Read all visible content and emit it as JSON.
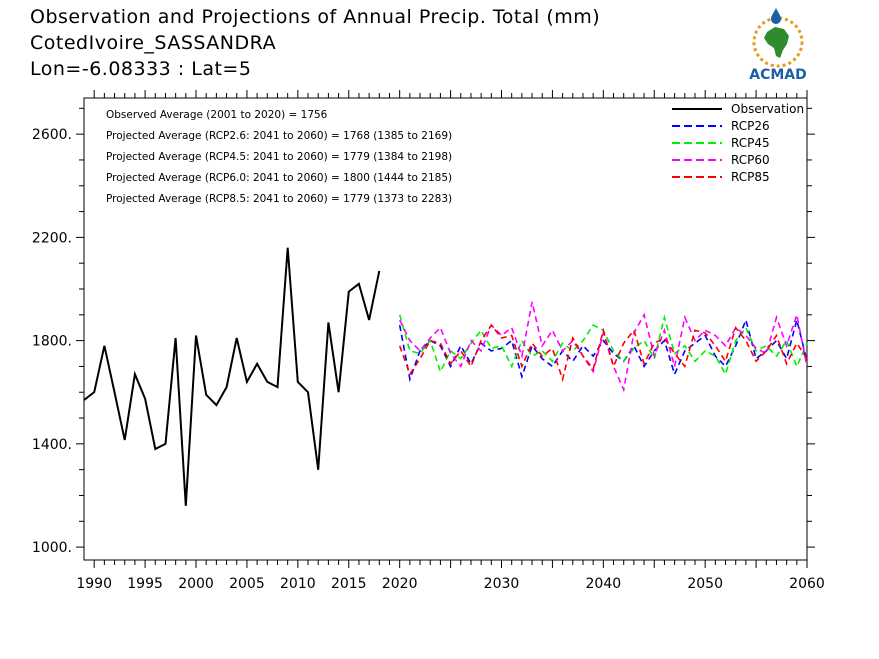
{
  "title_lines": [
    "Observation and Projections of Annual Precip. Total (mm)",
    "CotedIvoire_SASSANDRA",
    "Lon=-6.08333 : Lat=5"
  ],
  "logo_text": "ACMAD",
  "colors": {
    "Observation": "#000000",
    "RCP26": "#0000ff",
    "RCP45": "#00ee00",
    "RCP60": "#ff00ff",
    "RCP85": "#ff0000",
    "logo_blue": "#1a5fa8",
    "logo_green": "#2e8b2e",
    "logo_orange": "#e89a1e"
  },
  "chart_data": {
    "type": "line",
    "x_ticks": [
      1990,
      1995,
      2000,
      2005,
      2010,
      2015,
      2020,
      2030,
      2040,
      2050,
      2060
    ],
    "y_ticks": [
      "1000.",
      "1400.",
      "1800.",
      "2200.",
      "2600."
    ],
    "ylim": [
      950,
      2740
    ],
    "grid": false,
    "legend_position": "top-right",
    "legend": [
      "Observation",
      "RCP26",
      "RCP45",
      "RCP60",
      "RCP85"
    ],
    "annotations": [
      "Observed Average (2001 to 2020) = 1756",
      "Projected Average (RCP2.6: 2041 to 2060) = 1768 (1385 to 2169)",
      "Projected Average (RCP4.5: 2041 to 2060) = 1779 (1384 to 2198)",
      "Projected Average (RCP6.0: 2041 to 2060) = 1800 (1444 to 2185)",
      "Projected Average (RCP8.5: 2041 to 2060) = 1779 (1373 to 2283)"
    ],
    "series": [
      {
        "name": "Observation",
        "style": "solid",
        "x": [
          1989,
          1990,
          1991,
          1992,
          1993,
          1994,
          1995,
          1996,
          1997,
          1998,
          1999,
          2000,
          2001,
          2002,
          2003,
          2004,
          2005,
          2006,
          2007,
          2008,
          2009,
          2010,
          2011,
          2012,
          2013,
          2014,
          2015,
          2016,
          2017,
          2018,
          2019
        ],
        "y": [
          1570,
          1600,
          1780,
          1600,
          1415,
          1670,
          1575,
          1380,
          1400,
          1810,
          1160,
          1820,
          1590,
          1550,
          1620,
          1810,
          1640,
          1710,
          1640,
          1620,
          2160,
          1640,
          1600,
          1300,
          1870,
          1600,
          1990,
          2020,
          1880,
          2070,
          null
        ]
      },
      {
        "name": "RCP26",
        "style": "dashed",
        "x": [
          2020,
          2021,
          2022,
          2023,
          2024,
          2025,
          2026,
          2027,
          2028,
          2029,
          2030,
          2031,
          2032,
          2033,
          2034,
          2035,
          2036,
          2037,
          2038,
          2039,
          2040,
          2041,
          2042,
          2043,
          2044,
          2045,
          2046,
          2047,
          2048,
          2049,
          2050,
          2051,
          2052,
          2053,
          2054,
          2055,
          2056,
          2057,
          2058,
          2059,
          2060
        ],
        "y": [
          1860,
          1650,
          1760,
          1800,
          1780,
          1700,
          1780,
          1710,
          1790,
          1760,
          1770,
          1800,
          1660,
          1780,
          1730,
          1700,
          1760,
          1720,
          1780,
          1740,
          1800,
          1750,
          1720,
          1780,
          1700,
          1760,
          1800,
          1670,
          1760,
          1790,
          1820,
          1740,
          1700,
          1780,
          1880,
          1730,
          1760,
          1800,
          1730,
          1880,
          1720
        ]
      },
      {
        "name": "RCP45",
        "style": "dashed",
        "x": [
          2020,
          2021,
          2022,
          2023,
          2024,
          2025,
          2026,
          2027,
          2028,
          2029,
          2030,
          2031,
          2032,
          2033,
          2034,
          2035,
          2036,
          2037,
          2038,
          2039,
          2040,
          2041,
          2042,
          2043,
          2044,
          2045,
          2046,
          2047,
          2048,
          2049,
          2050,
          2051,
          2052,
          2053,
          2054,
          2055,
          2056,
          2057,
          2058,
          2059,
          2060
        ],
        "y": [
          1900,
          1760,
          1750,
          1800,
          1680,
          1760,
          1730,
          1790,
          1840,
          1770,
          1780,
          1700,
          1800,
          1740,
          1760,
          1720,
          1790,
          1760,
          1800,
          1860,
          1840,
          1760,
          1720,
          1770,
          1800,
          1730,
          1890,
          1750,
          1780,
          1720,
          1760,
          1740,
          1670,
          1800,
          1850,
          1760,
          1780,
          1740,
          1800,
          1700,
          1790
        ]
      },
      {
        "name": "RCP60",
        "style": "dashed",
        "x": [
          2020,
          2021,
          2022,
          2023,
          2024,
          2025,
          2026,
          2027,
          2028,
          2029,
          2030,
          2031,
          2032,
          2033,
          2034,
          2035,
          2036,
          2037,
          2038,
          2039,
          2040,
          2041,
          2042,
          2043,
          2044,
          2045,
          2046,
          2047,
          2048,
          2049,
          2050,
          2051,
          2052,
          2053,
          2054,
          2055,
          2056,
          2057,
          2058,
          2059,
          2060
        ],
        "y": [
          1880,
          1800,
          1760,
          1810,
          1850,
          1750,
          1700,
          1800,
          1760,
          1860,
          1820,
          1850,
          1740,
          1950,
          1780,
          1840,
          1760,
          1800,
          1740,
          1680,
          1830,
          1700,
          1610,
          1830,
          1900,
          1740,
          1840,
          1700,
          1890,
          1800,
          1840,
          1820,
          1780,
          1850,
          1820,
          1770,
          1750,
          1890,
          1780,
          1900,
          1700
        ]
      },
      {
        "name": "RCP85",
        "style": "dashed",
        "x": [
          2020,
          2021,
          2022,
          2023,
          2024,
          2025,
          2026,
          2027,
          2028,
          2029,
          2030,
          2031,
          2032,
          2033,
          2034,
          2035,
          2036,
          2037,
          2038,
          2039,
          2040,
          2041,
          2042,
          2043,
          2044,
          2045,
          2046,
          2047,
          2048,
          2049,
          2050,
          2051,
          2052,
          2053,
          2054,
          2055,
          2056,
          2057,
          2058,
          2059,
          2060
        ],
        "y": [
          1780,
          1670,
          1730,
          1800,
          1790,
          1710,
          1760,
          1700,
          1800,
          1860,
          1810,
          1820,
          1700,
          1790,
          1740,
          1770,
          1650,
          1810,
          1740,
          1690,
          1840,
          1700,
          1790,
          1840,
          1710,
          1790,
          1810,
          1750,
          1700,
          1840,
          1830,
          1780,
          1720,
          1850,
          1800,
          1720,
          1760,
          1820,
          1710,
          1790,
          1730
        ]
      }
    ]
  }
}
